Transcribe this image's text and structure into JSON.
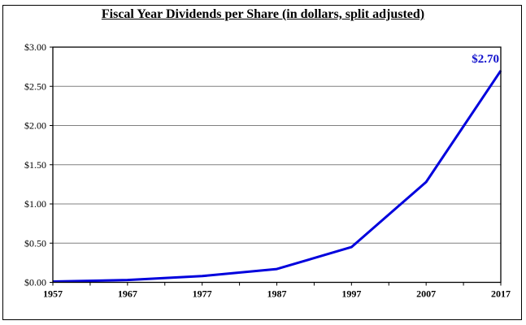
{
  "chart_data": {
    "type": "line",
    "title": "Fiscal Year Dividends per Share (in dollars, split adjusted)",
    "xlabel": "",
    "ylabel": "",
    "x": [
      "1957",
      "1967",
      "1977",
      "1987",
      "1997",
      "2007",
      "2017"
    ],
    "series": [
      {
        "name": "Dividends per Share",
        "values": [
          0.01,
          0.03,
          0.08,
          0.17,
          0.45,
          1.28,
          2.7
        ],
        "color": "#0000dd"
      }
    ],
    "ylim": [
      0,
      3.0
    ],
    "yticks": [
      "$0.00",
      "$0.50",
      "$1.00",
      "$1.50",
      "$2.00",
      "$2.50",
      "$3.00"
    ],
    "xticks": [
      "1957",
      "1967",
      "1977",
      "1987",
      "1997",
      "2007",
      "2017"
    ],
    "annotations": [
      {
        "text": "$2.70",
        "x": "2017",
        "y": 2.7
      }
    ],
    "grid": {
      "horizontal": true,
      "vertical": false
    },
    "legend": "none"
  }
}
